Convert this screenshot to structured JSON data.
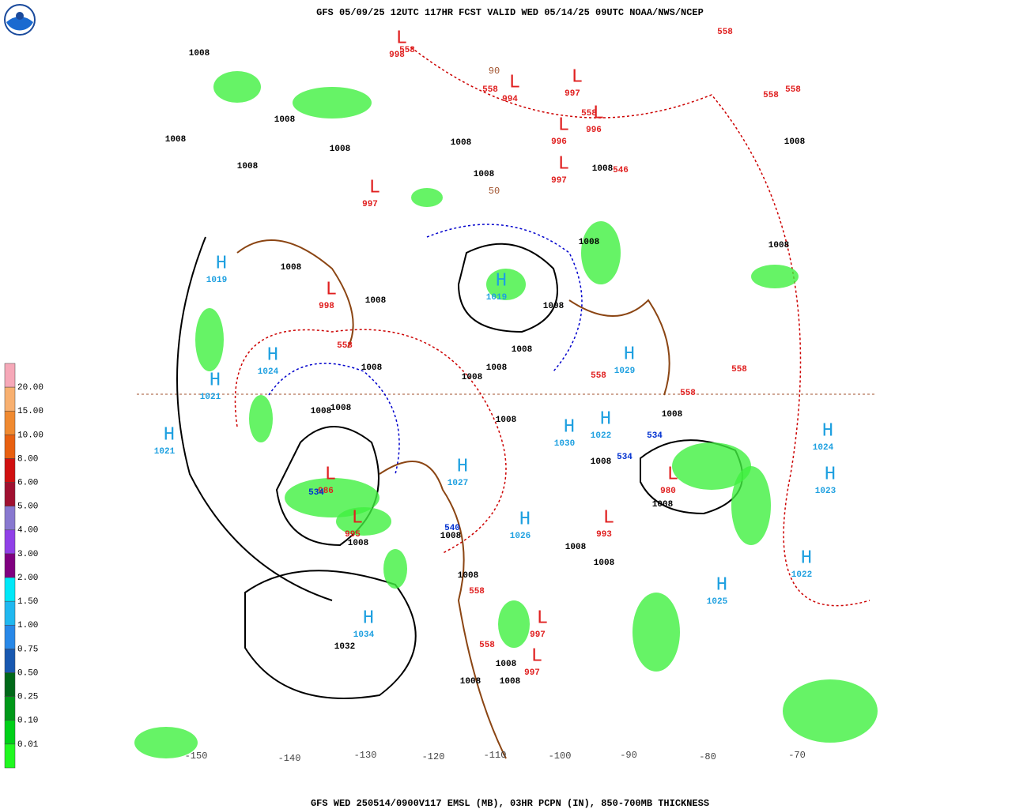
{
  "header": {
    "title": "GFS 05/09/25 12UTC 117HR FCST VALID WED 05/14/25 09UTC NOAA/NWS/NCEP"
  },
  "footer": {
    "caption": "GFS WED 250514/0900V117 EMSL (MB), 03HR PCPN (IN), 850-700MB THICKNESS"
  },
  "legend": {
    "labels": [
      "20.00",
      "15.00",
      "10.00",
      "8.00",
      "6.00",
      "5.00",
      "4.00",
      "3.00",
      "2.00",
      "1.50",
      "1.00",
      "0.75",
      "0.50",
      "0.25",
      "0.10",
      "0.01"
    ],
    "colors": [
      "#f6a8b8",
      "#f8b070",
      "#f08a30",
      "#e86010",
      "#d01010",
      "#a01030",
      "#8878d0",
      "#9040e8",
      "#800080",
      "#00e8f8",
      "#20b8f0",
      "#2888e8",
      "#1858b0",
      "#006818",
      "#009818",
      "#00d018",
      "#20f820",
      "#a8f040",
      "#ffffff"
    ]
  },
  "systems": [
    {
      "symbol": "H",
      "pressure": "1019"
    },
    {
      "symbol": "H",
      "pressure": "1024"
    },
    {
      "symbol": "H",
      "pressure": "1021"
    },
    {
      "symbol": "H",
      "pressure": "1021"
    },
    {
      "symbol": "L",
      "pressure": "986"
    },
    {
      "symbol": "L",
      "pressure": "995"
    },
    {
      "symbol": "H",
      "pressure": "1034"
    },
    {
      "symbol": "H",
      "pressure": "1027"
    },
    {
      "symbol": "H",
      "pressure": "1026"
    },
    {
      "symbol": "H",
      "pressure": "1019"
    },
    {
      "symbol": "H",
      "pressure": "1029"
    },
    {
      "symbol": "H",
      "pressure": "1030"
    },
    {
      "symbol": "H",
      "pressure": "1022"
    },
    {
      "symbol": "L",
      "pressure": "980"
    },
    {
      "symbol": "L",
      "pressure": "993"
    },
    {
      "symbol": "H",
      "pressure": "1025"
    },
    {
      "symbol": "H",
      "pressure": "1022"
    },
    {
      "symbol": "H",
      "pressure": "1023"
    },
    {
      "symbol": "H",
      "pressure": "1024"
    },
    {
      "symbol": "L",
      "pressure": "997"
    },
    {
      "symbol": "L",
      "pressure": "994"
    },
    {
      "symbol": "L",
      "pressure": "997"
    },
    {
      "symbol": "L",
      "pressure": "996"
    },
    {
      "symbol": "L",
      "pressure": "997"
    },
    {
      "symbol": "L",
      "pressure": "996"
    },
    {
      "symbol": "L",
      "pressure": "998"
    },
    {
      "symbol": "L",
      "pressure": "997"
    },
    {
      "symbol": "L",
      "pressure": "997"
    },
    {
      "symbol": "L",
      "pressure": "998"
    }
  ],
  "isobars": [
    "1008",
    "1008",
    "1008",
    "1008",
    "1008",
    "1008",
    "1008",
    "1008",
    "1008",
    "1008",
    "1008",
    "1008",
    "1008",
    "1008",
    "1008",
    "1008",
    "1008",
    "1008",
    "1008",
    "1008",
    "1008",
    "1008",
    "1032",
    "1008",
    "1008",
    "1008",
    "1008",
    "1008",
    "1008",
    "1008",
    "1008",
    "1008",
    "1008"
  ],
  "thickness_warm": [
    "558",
    "558",
    "558",
    "558",
    "558",
    "558",
    "558",
    "558",
    "558",
    "558",
    "558",
    "558",
    "546"
  ],
  "thickness_cold": [
    "534",
    "534",
    "534",
    "540"
  ],
  "longitudes": [
    "-150",
    "-140",
    "-130",
    "-120",
    "-110",
    "-100",
    "-90",
    "-80",
    "-70"
  ],
  "latitudes": [
    "90",
    "50"
  ]
}
